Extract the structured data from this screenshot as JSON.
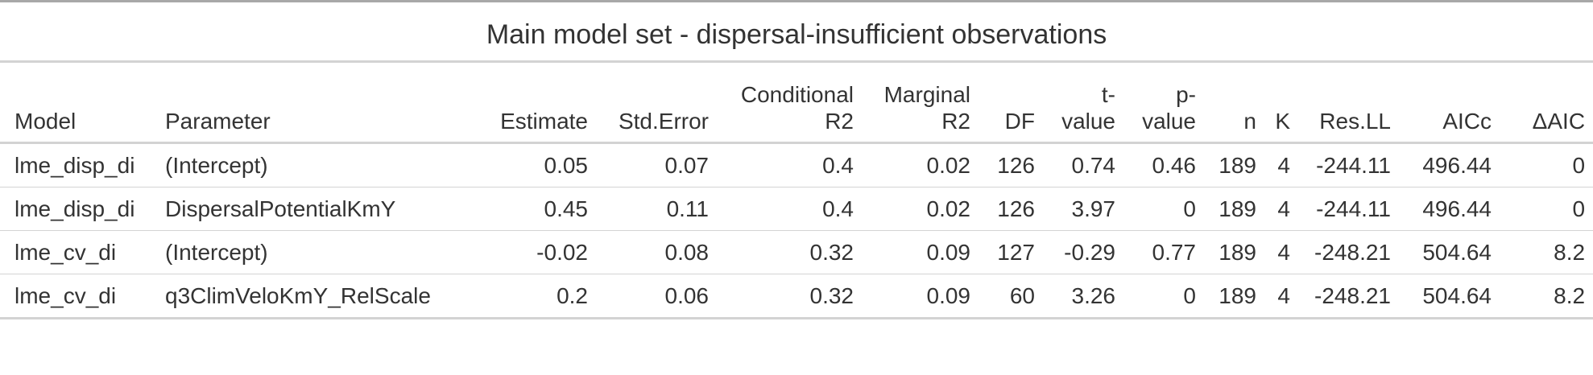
{
  "table": {
    "title": "Main model set - dispersal-insufficient observations",
    "headers": {
      "model": "Model",
      "parameter": "Parameter",
      "estimate": "Estimate",
      "std_error": "Std.Error",
      "cond_r2_line1": "Conditional",
      "cond_r2_line2": "R2",
      "marg_r2_line1": "Marginal",
      "marg_r2_line2": "R2",
      "df": "DF",
      "t_line1": "t-",
      "t_line2": "value",
      "p_line1": "p-",
      "p_line2": "value",
      "n": "n",
      "k": "K",
      "res_ll": "Res.LL",
      "aicc": "AICc",
      "delta_aic": "ΔAIC"
    },
    "rows": [
      {
        "model": "lme_disp_di",
        "parameter": "(Intercept)",
        "estimate": "0.05",
        "std_error": "0.07",
        "cond_r2": "0.4",
        "marg_r2": "0.02",
        "df": "126",
        "t_value": "0.74",
        "p_value": "0.46",
        "n": "189",
        "k": "4",
        "res_ll": "-244.11",
        "aicc": "496.44",
        "delta_aic": "0"
      },
      {
        "model": "lme_disp_di",
        "parameter": "DispersalPotentialKmY",
        "estimate": "0.45",
        "std_error": "0.11",
        "cond_r2": "0.4",
        "marg_r2": "0.02",
        "df": "126",
        "t_value": "3.97",
        "p_value": "0",
        "n": "189",
        "k": "4",
        "res_ll": "-244.11",
        "aicc": "496.44",
        "delta_aic": "0"
      },
      {
        "model": "lme_cv_di",
        "parameter": "(Intercept)",
        "estimate": "-0.02",
        "std_error": "0.08",
        "cond_r2": "0.32",
        "marg_r2": "0.09",
        "df": "127",
        "t_value": "-0.29",
        "p_value": "0.77",
        "n": "189",
        "k": "4",
        "res_ll": "-248.21",
        "aicc": "504.64",
        "delta_aic": "8.2"
      },
      {
        "model": "lme_cv_di",
        "parameter": "q3ClimVeloKmY_RelScale",
        "estimate": "0.2",
        "std_error": "0.06",
        "cond_r2": "0.32",
        "marg_r2": "0.09",
        "df": "60",
        "t_value": "3.26",
        "p_value": "0",
        "n": "189",
        "k": "4",
        "res_ll": "-248.21",
        "aicc": "504.64",
        "delta_aic": "8.2"
      }
    ]
  }
}
